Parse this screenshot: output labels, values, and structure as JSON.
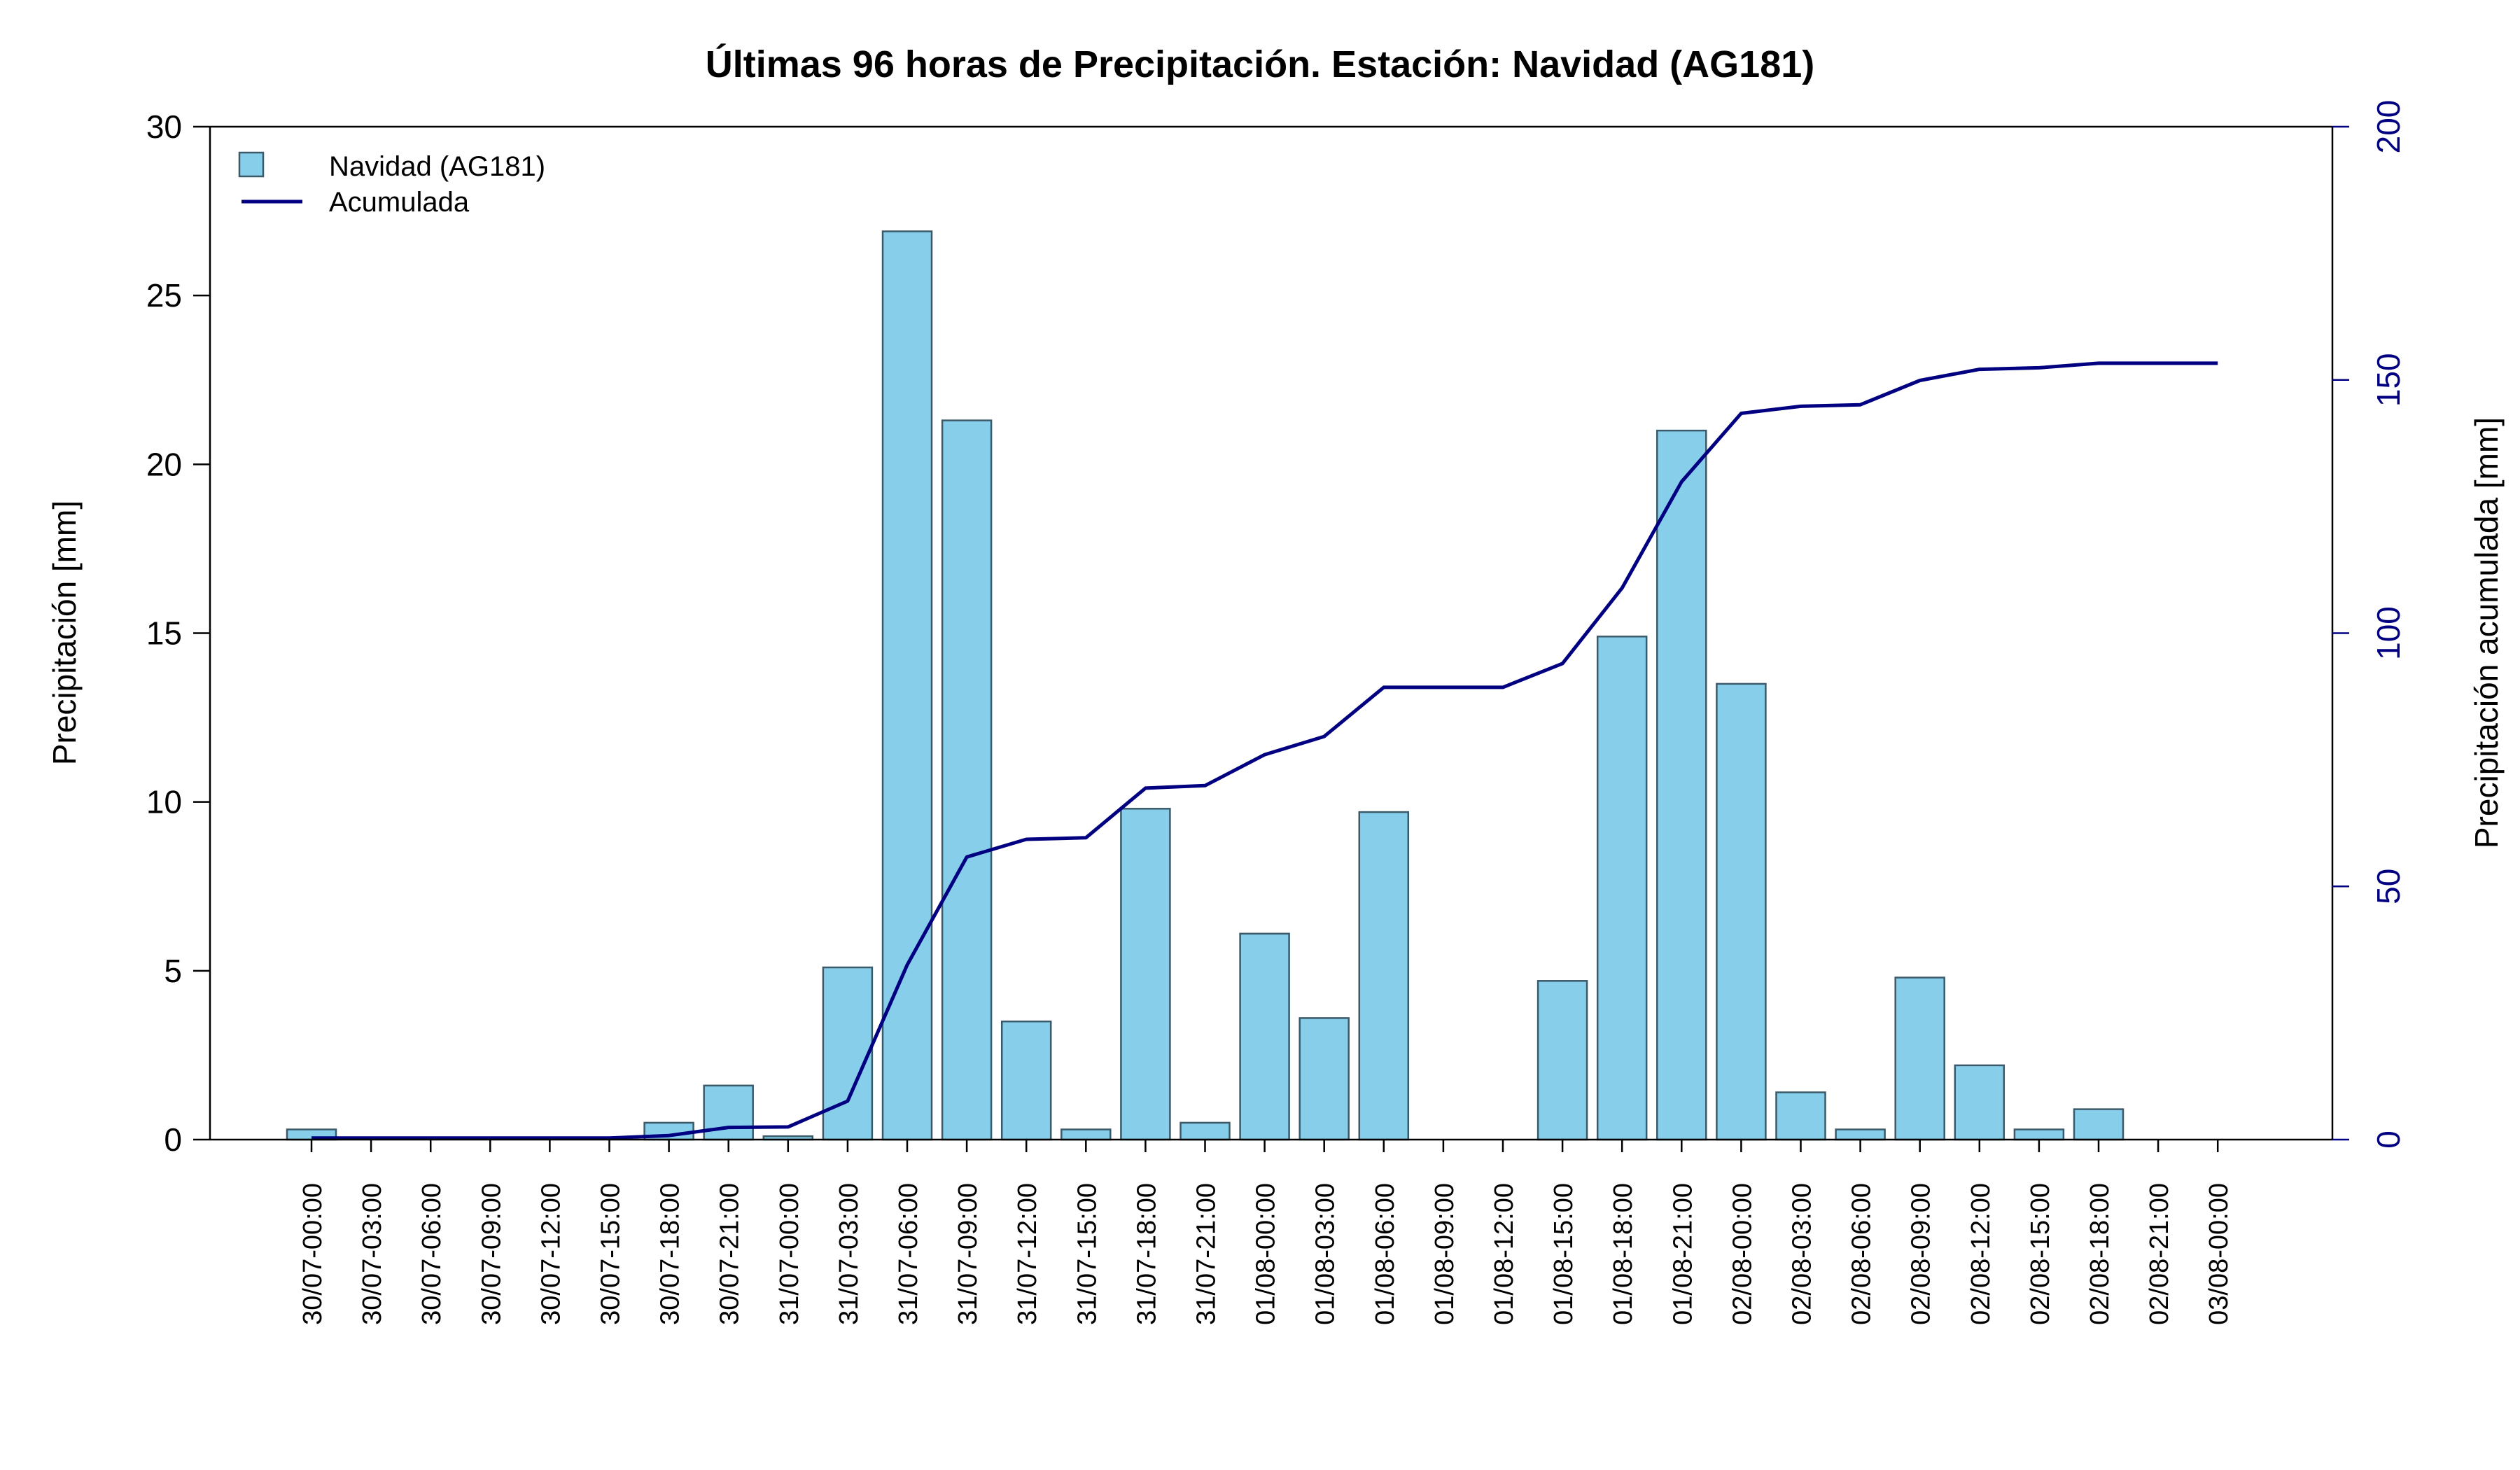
{
  "chart_data": {
    "type": "bar",
    "title": "Últimas 96 horas de Precipitación. Estación: Navidad (AG181)",
    "xlabel": "",
    "ylabel": "Precipitación [mm]",
    "y2label": "Precipitación acumulada [mm]",
    "ylim": [
      0,
      30
    ],
    "y2lim": [
      0,
      200
    ],
    "yticks": [
      "0",
      "5",
      "10",
      "15",
      "20",
      "25",
      "30"
    ],
    "y2ticks": [
      "0",
      "50",
      "100",
      "150",
      "200"
    ],
    "grid": false,
    "legend_position": "top-left",
    "colors": {
      "bar": "#87ceeb",
      "bar_stroke": "#3a5a6a",
      "line": "#000080",
      "axis2": "#000080"
    },
    "categories": [
      "30/07-00:00",
      "30/07-03:00",
      "30/07-06:00",
      "30/07-09:00",
      "30/07-12:00",
      "30/07-15:00",
      "30/07-18:00",
      "30/07-21:00",
      "31/07-00:00",
      "31/07-03:00",
      "31/07-06:00",
      "31/07-09:00",
      "31/07-12:00",
      "31/07-15:00",
      "31/07-18:00",
      "31/07-21:00",
      "01/08-00:00",
      "01/08-03:00",
      "01/08-06:00",
      "01/08-09:00",
      "01/08-12:00",
      "01/08-15:00",
      "01/08-18:00",
      "01/08-21:00",
      "02/08-00:00",
      "02/08-03:00",
      "02/08-06:00",
      "02/08-09:00",
      "02/08-12:00",
      "02/08-15:00",
      "02/08-18:00",
      "02/08-21:00",
      "03/08-00:00"
    ],
    "series": [
      {
        "name": "Navidad (AG181)",
        "type": "bar",
        "axis": "left",
        "values": [
          0.3,
          0,
          0,
          0,
          0,
          0,
          0.5,
          1.6,
          0.1,
          5.1,
          26.9,
          21.3,
          3.5,
          0.3,
          9.8,
          0.5,
          6.1,
          3.6,
          9.7,
          0,
          0,
          4.7,
          14.9,
          21.0,
          13.5,
          1.4,
          0.3,
          4.8,
          2.2,
          0.3,
          0.9,
          0,
          0
        ]
      },
      {
        "name": "Acumulada",
        "type": "line",
        "axis": "right",
        "values": [
          0.3,
          0.3,
          0.3,
          0.3,
          0.3,
          0.3,
          0.8,
          2.4,
          2.5,
          7.6,
          34.5,
          55.8,
          59.3,
          59.6,
          69.4,
          69.9,
          76.0,
          79.6,
          89.3,
          89.3,
          89.3,
          94.0,
          108.9,
          129.9,
          143.4,
          144.8,
          145.1,
          149.9,
          152.1,
          152.4,
          153.3,
          153.3,
          153.3
        ]
      }
    ]
  }
}
